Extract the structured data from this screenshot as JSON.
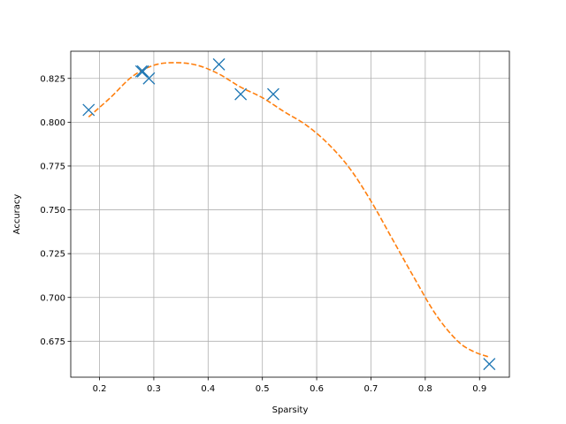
{
  "chart_data": {
    "type": "scatter",
    "title": "",
    "xlabel": "Sparsity",
    "ylabel": "Accuracy",
    "xlim": [
      0.147,
      0.955
    ],
    "ylim": [
      0.6545,
      0.8405
    ],
    "grid": true,
    "x_ticks": [
      {
        "value": 0.2,
        "label": "0.2"
      },
      {
        "value": 0.3,
        "label": "0.3"
      },
      {
        "value": 0.4,
        "label": "0.4"
      },
      {
        "value": 0.5,
        "label": "0.5"
      },
      {
        "value": 0.6,
        "label": "0.6"
      },
      {
        "value": 0.7,
        "label": "0.7"
      },
      {
        "value": 0.8,
        "label": "0.8"
      },
      {
        "value": 0.9,
        "label": "0.9"
      }
    ],
    "y_ticks": [
      {
        "value": 0.675,
        "label": "0.675"
      },
      {
        "value": 0.7,
        "label": "0.700"
      },
      {
        "value": 0.725,
        "label": "0.725"
      },
      {
        "value": 0.75,
        "label": "0.750"
      },
      {
        "value": 0.775,
        "label": "0.775"
      },
      {
        "value": 0.8,
        "label": "0.800"
      },
      {
        "value": 0.825,
        "label": "0.825"
      }
    ],
    "series": [
      {
        "type": "scatter",
        "marker": "x",
        "color": "#1f77b4",
        "points": [
          {
            "x": 0.18,
            "y": 0.807
          },
          {
            "x": 0.277,
            "y": 0.829
          },
          {
            "x": 0.28,
            "y": 0.829
          },
          {
            "x": 0.291,
            "y": 0.825
          },
          {
            "x": 0.42,
            "y": 0.833
          },
          {
            "x": 0.46,
            "y": 0.816
          },
          {
            "x": 0.52,
            "y": 0.816
          },
          {
            "x": 0.918,
            "y": 0.662
          }
        ]
      },
      {
        "type": "line",
        "style": "dashed",
        "color": "#ff7f0e",
        "points": [
          {
            "x": 0.18,
            "y": 0.803
          },
          {
            "x": 0.22,
            "y": 0.814
          },
          {
            "x": 0.26,
            "y": 0.826
          },
          {
            "x": 0.3,
            "y": 0.8325
          },
          {
            "x": 0.34,
            "y": 0.834
          },
          {
            "x": 0.38,
            "y": 0.8325
          },
          {
            "x": 0.42,
            "y": 0.8275
          },
          {
            "x": 0.46,
            "y": 0.82
          },
          {
            "x": 0.5,
            "y": 0.814
          },
          {
            "x": 0.54,
            "y": 0.806
          },
          {
            "x": 0.58,
            "y": 0.7985
          },
          {
            "x": 0.62,
            "y": 0.788
          },
          {
            "x": 0.66,
            "y": 0.774
          },
          {
            "x": 0.7,
            "y": 0.755
          },
          {
            "x": 0.74,
            "y": 0.733
          },
          {
            "x": 0.78,
            "y": 0.711
          },
          {
            "x": 0.82,
            "y": 0.69
          },
          {
            "x": 0.86,
            "y": 0.675
          },
          {
            "x": 0.89,
            "y": 0.669
          },
          {
            "x": 0.918,
            "y": 0.666
          }
        ]
      }
    ]
  }
}
